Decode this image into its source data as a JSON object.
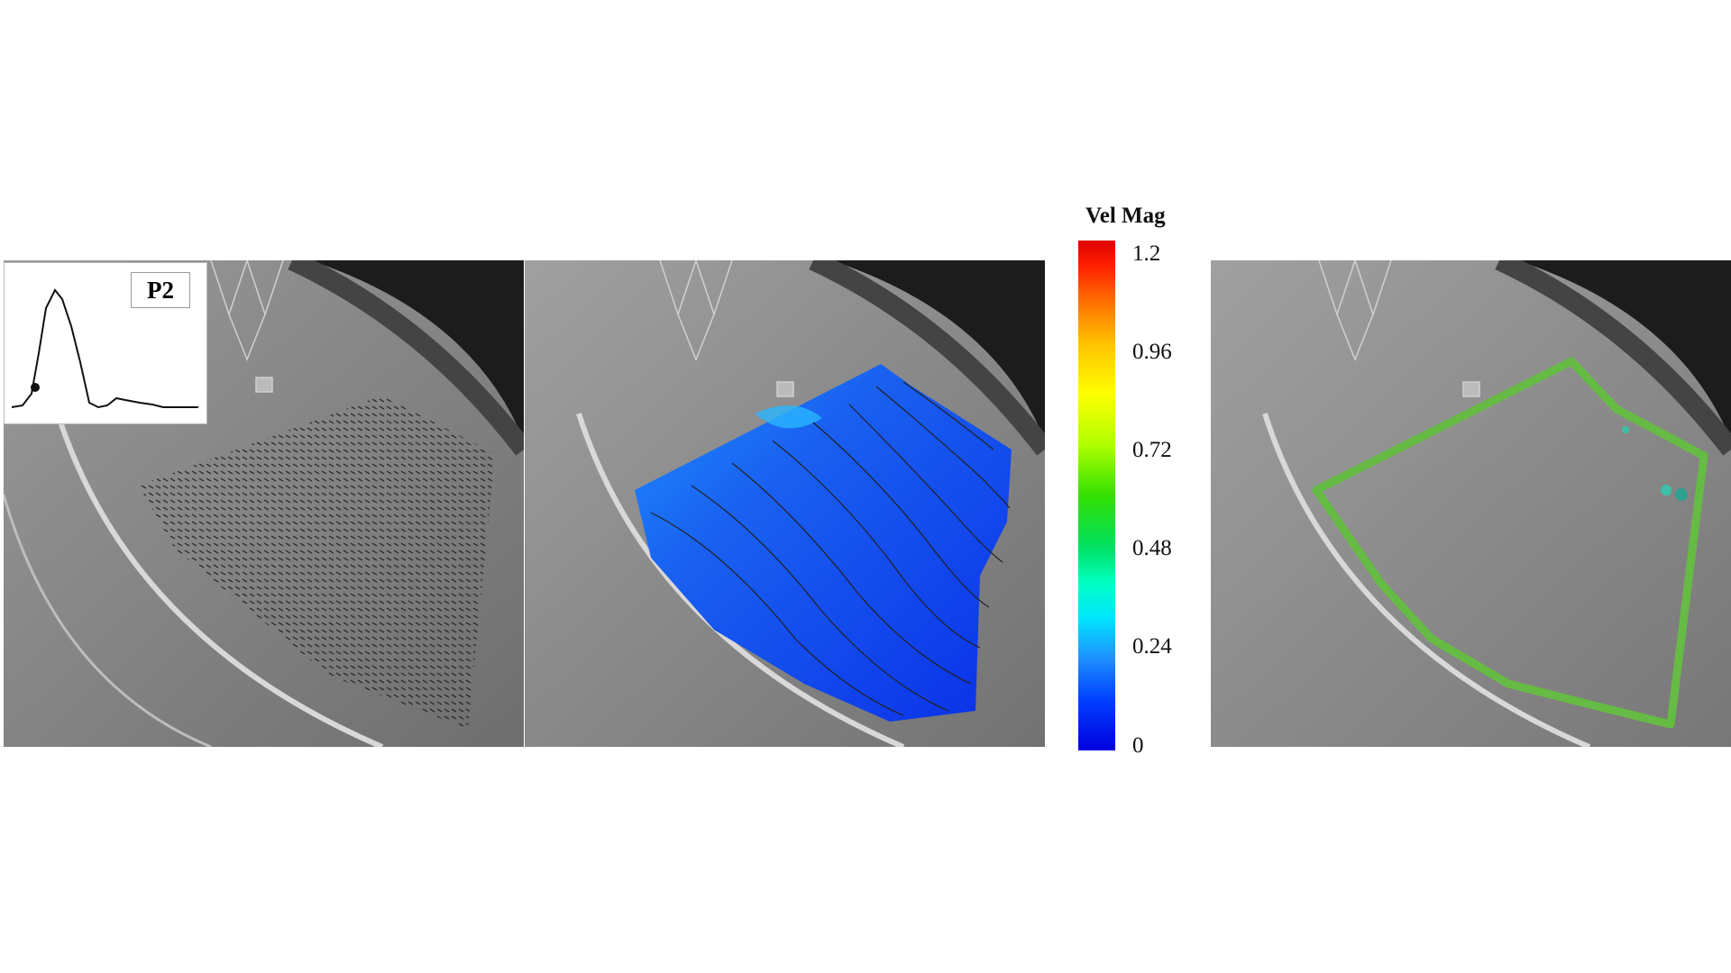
{
  "inset": {
    "phase_label": "P2"
  },
  "colorbar": {
    "title": "Vel Mag",
    "ticks": [
      "1.2",
      "0.96",
      "0.72",
      "0.48",
      "0.24",
      "0"
    ],
    "colors": [
      "#0000e0",
      "#1e90ff",
      "#00e5ff",
      "#00e060",
      "#ffff00",
      "#ff7000",
      "#e00000"
    ]
  },
  "panels": [
    {
      "name": "vector-field",
      "overlay": "velocity-vectors"
    },
    {
      "name": "velocity-magnitude",
      "overlay": "contour-streamlines"
    },
    {
      "name": "region-outline",
      "outline_color": "#66bb44"
    }
  ]
}
